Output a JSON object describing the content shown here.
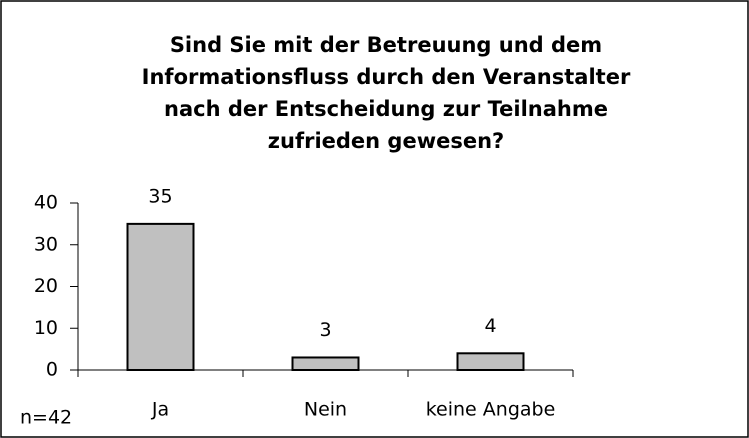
{
  "chart_data": {
    "type": "bar",
    "title": [
      "Sind Sie mit der Betreuung und dem",
      "Informationsfluss durch den Veranstalter",
      "nach der Entscheidung zur Teilnahme",
      "zufrieden gewesen?"
    ],
    "categories": [
      "Ja",
      "Nein",
      "keine Angabe"
    ],
    "values": [
      35,
      3,
      4
    ],
    "color": "#c0c0c0",
    "ylim": [
      0,
      40
    ],
    "yticks": [
      0,
      10,
      20,
      30,
      40
    ],
    "annotation": "n=42"
  }
}
